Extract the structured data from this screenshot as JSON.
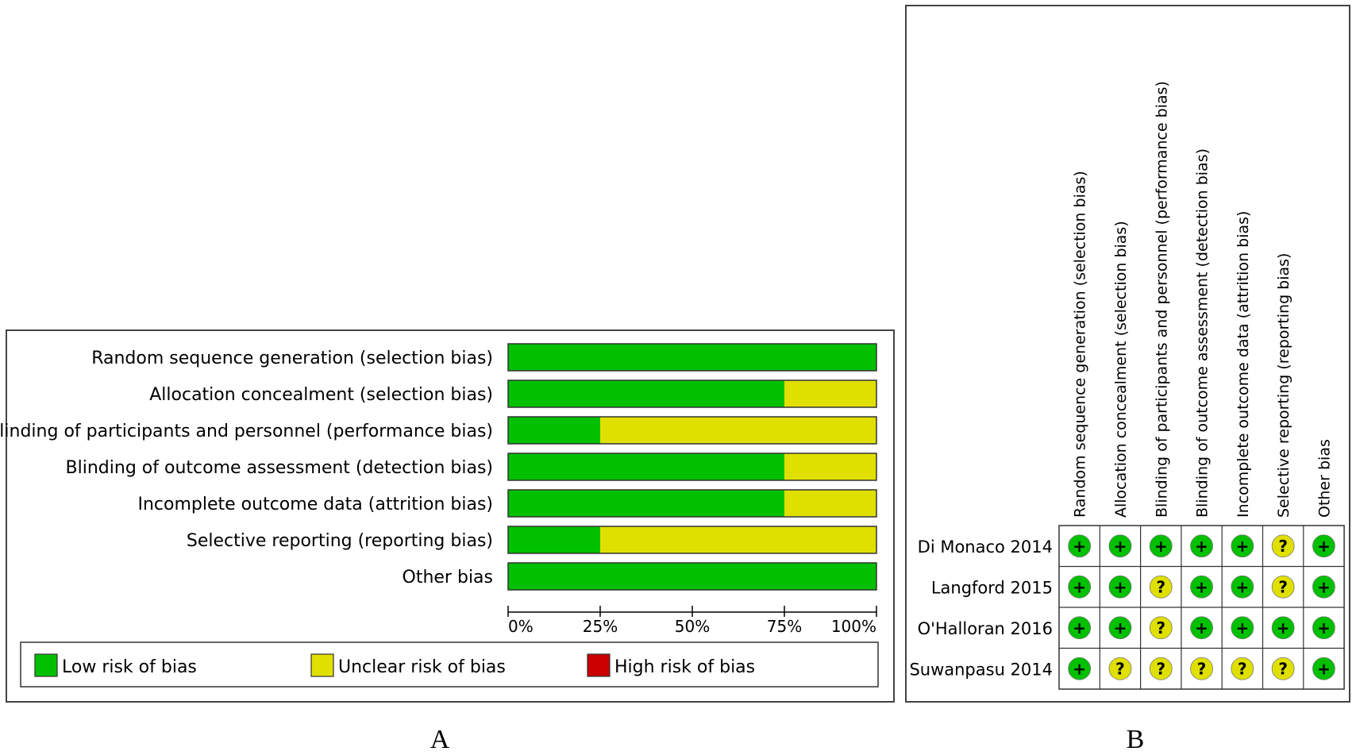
{
  "panel_labels": {
    "a": "A",
    "b": "B"
  },
  "colors": {
    "low": "#00c000",
    "unclear": "#e0e000",
    "high": "#cc0000"
  },
  "chart_data": [
    {
      "type": "bar",
      "orientation": "horizontal",
      "stacked": true,
      "percent": true,
      "categories": [
        "Random sequence generation (selection bias)",
        "Allocation concealment (selection bias)",
        "Blinding of participants and personnel (performance bias)",
        "Blinding of outcome assessment (detection bias)",
        "Incomplete outcome data (attrition bias)",
        "Selective reporting (reporting bias)",
        "Other bias"
      ],
      "series": [
        {
          "name": "Low risk of bias",
          "values": [
            100,
            75,
            25,
            75,
            75,
            25,
            100
          ]
        },
        {
          "name": "Unclear risk of bias",
          "values": [
            0,
            25,
            75,
            25,
            25,
            75,
            0
          ]
        },
        {
          "name": "High risk of bias",
          "values": [
            0,
            0,
            0,
            0,
            0,
            0,
            0
          ]
        }
      ],
      "xlim": [
        0,
        100
      ],
      "xticks": [
        "0%",
        "25%",
        "50%",
        "75%",
        "100%"
      ],
      "legend_position": "bottom"
    },
    {
      "type": "table",
      "columns": [
        "Random sequence generation (selection bias)",
        "Allocation concealment (selection bias)",
        "Blinding of participants and personnel (performance bias)",
        "Blinding of outcome assessment (detection bias)",
        "Incomplete outcome data (attrition bias)",
        "Selective reporting (reporting bias)",
        "Other bias"
      ],
      "rows": [
        {
          "study": "Di Monaco 2014",
          "ratings": [
            "+",
            "+",
            "+",
            "+",
            "+",
            "?",
            "+"
          ]
        },
        {
          "study": "Langford 2015",
          "ratings": [
            "+",
            "+",
            "?",
            "+",
            "+",
            "?",
            "+"
          ]
        },
        {
          "study": "O'Halloran 2016",
          "ratings": [
            "+",
            "+",
            "?",
            "+",
            "+",
            "+",
            "+"
          ]
        },
        {
          "study": "Suwanpasu 2014",
          "ratings": [
            "+",
            "?",
            "?",
            "?",
            "?",
            "?",
            "+"
          ]
        }
      ]
    }
  ]
}
